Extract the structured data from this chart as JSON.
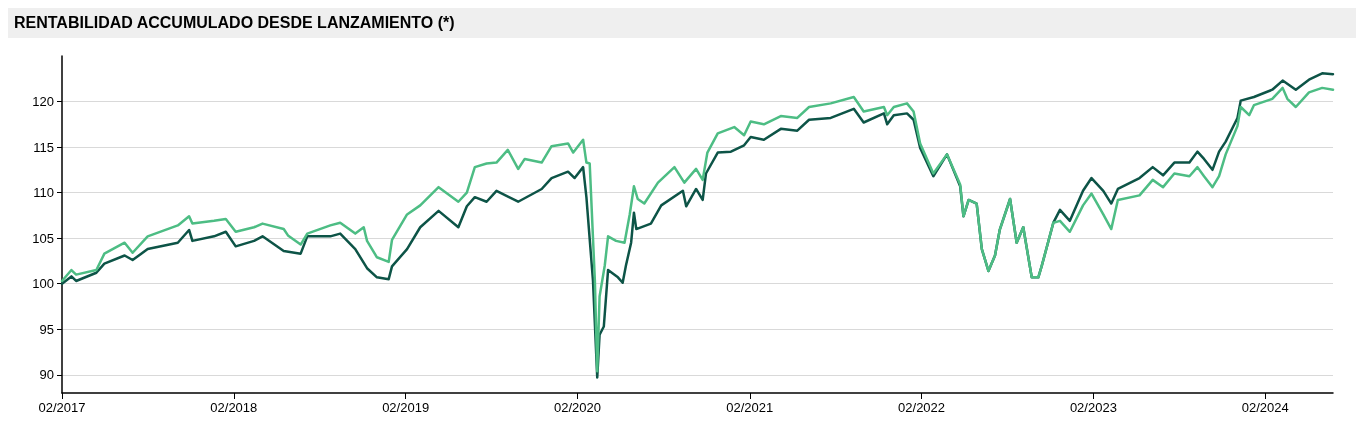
{
  "chart_data": {
    "type": "line",
    "title": "RENTABILIDAD ACCUMULADO DESDE LANZAMIENTO (*)",
    "xlim": [
      "2017-02-01",
      "2024-06-24"
    ],
    "ylim": [
      88,
      125
    ],
    "xticks": [
      {
        "value": "2017-02",
        "label": "02/2017"
      },
      {
        "value": "2018-02",
        "label": "02/2018"
      },
      {
        "value": "2019-02",
        "label": "02/2019"
      },
      {
        "value": "2020-02",
        "label": "02/2020"
      },
      {
        "value": "2021-02",
        "label": "02/2021"
      },
      {
        "value": "2022-02",
        "label": "02/2022"
      },
      {
        "value": "2023-02",
        "label": "02/2023"
      },
      {
        "value": "2024-02",
        "label": "02/2024"
      }
    ],
    "yticks": [
      90,
      95,
      100,
      105,
      110,
      115,
      120
    ],
    "grid": "y",
    "marker": "none",
    "line_style": "solid",
    "series": [
      {
        "color": "#0d5447",
        "x": [
          "2017-02-01",
          "2017-02-21",
          "2017-03-03",
          "2017-04-15",
          "2017-05-02",
          "2017-06-14",
          "2017-07-01",
          "2017-08-02",
          "2017-10-05",
          "2017-10-29",
          "2017-11-05",
          "2017-12-21",
          "2018-01-15",
          "2018-02-05",
          "2018-03-16",
          "2018-04-03",
          "2018-05-18",
          "2018-06-23",
          "2018-07-07",
          "2018-08-25",
          "2018-09-15",
          "2018-10-17",
          "2018-11-11",
          "2018-12-02",
          "2018-12-27",
          "2019-01-03",
          "2019-02-04",
          "2019-03-04",
          "2019-04-12",
          "2019-05-24",
          "2019-06-11",
          "2019-06-28",
          "2019-07-23",
          "2019-08-13",
          "2019-09-28",
          "2019-11-17",
          "2019-12-08",
          "2020-01-12",
          "2020-01-26",
          "2020-02-13",
          "2020-02-20",
          "2020-03-05",
          "2020-03-14",
          "2020-03-19",
          "2020-03-28",
          "2020-04-06",
          "2020-04-27",
          "2020-05-07",
          "2020-05-14",
          "2020-05-25",
          "2020-05-31",
          "2020-06-05",
          "2020-07-06",
          "2020-07-28",
          "2020-09-12",
          "2020-09-19",
          "2020-10-10",
          "2020-10-24",
          "2020-10-31",
          "2020-11-25",
          "2020-12-23",
          "2021-01-20",
          "2021-02-03",
          "2021-03-03",
          "2021-04-08",
          "2021-05-13",
          "2021-06-07",
          "2021-07-23",
          "2021-09-10",
          "2021-10-01",
          "2021-11-13",
          "2021-11-20",
          "2021-12-04",
          "2022-01-01",
          "2022-01-15",
          "2022-01-29",
          "2022-02-26",
          "2022-03-27",
          "2022-04-24",
          "2022-05-01",
          "2022-05-12",
          "2022-05-29",
          "2022-06-09",
          "2022-06-23",
          "2022-07-07",
          "2022-07-17",
          "2022-08-08",
          "2022-08-22",
          "2022-09-05",
          "2022-09-23",
          "2022-10-07",
          "2022-10-14",
          "2022-11-08",
          "2022-11-22",
          "2022-12-13",
          "2023-01-10",
          "2023-01-28",
          "2023-02-22",
          "2023-03-11",
          "2023-03-25",
          "2023-05-10",
          "2023-06-07",
          "2023-06-29",
          "2023-07-23",
          "2023-08-24",
          "2023-09-10",
          "2023-09-24",
          "2023-10-12",
          "2023-10-26",
          "2023-11-09",
          "2023-12-04",
          "2023-12-11",
          "2024-01-08",
          "2024-02-16",
          "2024-03-09",
          "2024-04-06",
          "2024-05-04",
          "2024-06-01",
          "2024-06-24"
        ],
        "values": [
          100.0,
          100.8,
          100.3,
          101.2,
          102.2,
          103.1,
          102.6,
          103.8,
          104.5,
          105.9,
          104.7,
          105.2,
          105.7,
          104.1,
          104.7,
          105.2,
          103.6,
          103.3,
          105.2,
          105.2,
          105.5,
          103.8,
          101.7,
          100.7,
          100.5,
          101.9,
          103.8,
          106.2,
          108.0,
          106.2,
          108.5,
          109.5,
          109.0,
          110.2,
          109.0,
          110.4,
          111.6,
          112.3,
          111.6,
          112.8,
          109.5,
          100.3,
          89.7,
          94.4,
          95.3,
          101.5,
          100.7,
          100.1,
          102.0,
          104.5,
          107.8,
          106.0,
          106.6,
          108.6,
          110.2,
          108.5,
          110.4,
          109.2,
          112.1,
          114.4,
          114.5,
          115.2,
          116.1,
          115.8,
          117.0,
          116.8,
          118.0,
          118.2,
          119.2,
          117.7,
          118.7,
          117.5,
          118.5,
          118.7,
          118.0,
          114.9,
          111.8,
          114.2,
          110.7,
          107.4,
          109.2,
          108.8,
          103.8,
          101.4,
          103.1,
          105.9,
          109.3,
          104.5,
          106.2,
          100.7,
          100.7,
          101.9,
          106.7,
          108.1,
          106.9,
          110.2,
          111.6,
          110.2,
          108.8,
          110.4,
          111.6,
          112.8,
          111.9,
          113.3,
          113.3,
          114.5,
          113.7,
          112.5,
          114.5,
          115.6,
          118.2,
          120.1,
          120.5,
          121.3,
          122.3,
          121.3,
          122.4,
          123.1,
          123.0
        ]
      },
      {
        "color": "#4dbd84",
        "x": [
          "2017-02-01",
          "2017-02-21",
          "2017-03-03",
          "2017-04-15",
          "2017-05-02",
          "2017-06-14",
          "2017-07-01",
          "2017-08-02",
          "2017-10-05",
          "2017-10-29",
          "2017-11-05",
          "2017-12-21",
          "2018-01-15",
          "2018-02-05",
          "2018-03-16",
          "2018-04-03",
          "2018-05-18",
          "2018-05-27",
          "2018-06-23",
          "2018-07-07",
          "2018-08-25",
          "2018-09-15",
          "2018-10-17",
          "2018-11-04",
          "2018-11-11",
          "2018-12-02",
          "2018-12-27",
          "2019-01-03",
          "2019-02-04",
          "2019-03-04",
          "2019-04-12",
          "2019-05-24",
          "2019-06-11",
          "2019-06-28",
          "2019-07-23",
          "2019-08-13",
          "2019-09-06",
          "2019-09-28",
          "2019-10-12",
          "2019-11-17",
          "2019-12-08",
          "2020-01-12",
          "2020-01-23",
          "2020-02-13",
          "2020-02-20",
          "2020-02-27",
          "2020-03-09",
          "2020-03-14",
          "2020-03-19",
          "2020-03-30",
          "2020-04-06",
          "2020-04-23",
          "2020-05-11",
          "2020-05-22",
          "2020-05-31",
          "2020-06-08",
          "2020-06-22",
          "2020-07-21",
          "2020-08-25",
          "2020-09-15",
          "2020-10-10",
          "2020-10-24",
          "2020-11-03",
          "2020-11-25",
          "2020-12-30",
          "2021-01-20",
          "2021-02-03",
          "2021-03-03",
          "2021-04-08",
          "2021-05-13",
          "2021-06-07",
          "2021-07-23",
          "2021-09-10",
          "2021-10-01",
          "2021-11-13",
          "2021-11-20",
          "2021-12-04",
          "2022-01-01",
          "2022-01-15",
          "2022-01-29",
          "2022-02-26",
          "2022-03-27",
          "2022-04-24",
          "2022-05-01",
          "2022-05-12",
          "2022-05-29",
          "2022-06-09",
          "2022-06-23",
          "2022-07-07",
          "2022-07-17",
          "2022-08-08",
          "2022-08-22",
          "2022-09-05",
          "2022-09-23",
          "2022-10-07",
          "2022-10-14",
          "2022-11-08",
          "2022-11-22",
          "2022-12-13",
          "2023-01-10",
          "2023-01-28",
          "2023-02-22",
          "2023-03-11",
          "2023-03-25",
          "2023-05-10",
          "2023-06-07",
          "2023-06-29",
          "2023-07-23",
          "2023-08-24",
          "2023-09-10",
          "2023-09-24",
          "2023-10-12",
          "2023-10-26",
          "2023-11-09",
          "2023-12-04",
          "2023-12-11",
          "2023-12-29",
          "2024-01-08",
          "2024-02-16",
          "2024-03-09",
          "2024-03-19",
          "2024-04-06",
          "2024-05-04",
          "2024-06-01",
          "2024-06-24"
        ],
        "values": [
          100.3,
          101.5,
          101.0,
          101.5,
          103.3,
          104.5,
          103.4,
          105.2,
          106.4,
          107.4,
          106.6,
          106.9,
          107.1,
          105.7,
          106.2,
          106.6,
          106.0,
          105.3,
          104.3,
          105.5,
          106.4,
          106.7,
          105.5,
          106.2,
          104.7,
          102.9,
          102.4,
          104.8,
          107.6,
          108.6,
          110.6,
          109.0,
          110.0,
          112.8,
          113.2,
          113.3,
          114.7,
          112.6,
          113.7,
          113.3,
          115.1,
          115.4,
          114.4,
          115.8,
          113.3,
          113.2,
          100.3,
          90.4,
          98.6,
          102.0,
          105.2,
          104.7,
          104.5,
          107.6,
          110.7,
          109.3,
          108.8,
          111.1,
          112.8,
          111.1,
          112.6,
          111.4,
          114.4,
          116.5,
          117.2,
          116.3,
          117.8,
          117.5,
          118.4,
          118.2,
          119.4,
          119.8,
          120.5,
          118.9,
          119.4,
          118.5,
          119.4,
          119.8,
          118.9,
          115.4,
          112.1,
          114.2,
          110.9,
          107.4,
          109.2,
          108.8,
          103.8,
          101.4,
          103.1,
          105.9,
          109.3,
          104.5,
          106.2,
          100.7,
          100.7,
          101.9,
          106.7,
          106.9,
          105.7,
          108.6,
          109.9,
          107.6,
          106.0,
          109.2,
          109.7,
          111.4,
          110.6,
          112.1,
          111.8,
          112.8,
          111.8,
          110.6,
          111.8,
          114.2,
          117.3,
          119.4,
          118.5,
          119.6,
          120.3,
          121.5,
          120.3,
          119.4,
          121.0,
          121.5,
          121.3
        ]
      }
    ]
  }
}
